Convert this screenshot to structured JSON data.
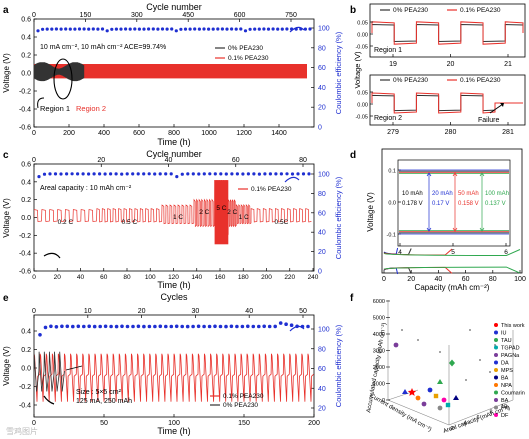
{
  "colors": {
    "red": "#e8312b",
    "black": "#333333",
    "blue": "#1f2fd1",
    "purple": "#7a3d9a",
    "green": "#2fa84f"
  },
  "panels": {
    "a": {
      "letter": "a",
      "top_label": "Cycle number",
      "top_ticks": [
        "0",
        "150",
        "300",
        "450",
        "600",
        "750"
      ],
      "xlabel": "Time (h)",
      "x_ticks": [
        "0",
        "200",
        "400",
        "600",
        "800",
        "1000",
        "1200",
        "1400"
      ],
      "ylabel": "Voltage (V)",
      "y_ticks": [
        "0.6",
        "0.4",
        "0.2",
        "0.0",
        "-0.2",
        "-0.4",
        "-0.6"
      ],
      "y2label": "Coulombic efficiency (%)",
      "y2_ticks": [
        "100",
        "80",
        "60",
        "40",
        "20",
        "0"
      ],
      "annotation_rate": "10 mA cm⁻², 10 mAh cm⁻²",
      "annotation_ace": "ACE=99.74%",
      "legend": [
        "0% PEA230",
        "0.1% PEA230"
      ],
      "region1": "Region 1",
      "region2": "Region 2"
    },
    "b": {
      "letter": "b",
      "legend": [
        "0% PEA230",
        "0.1% PEA230"
      ],
      "ylabel": "Voltage (V)",
      "top_ticks": [
        "19",
        "20",
        "21"
      ],
      "top_yticks": [
        "0.05",
        "0.00",
        "-0.05"
      ],
      "region1": "Region 1",
      "bottom_ticks": [
        "279",
        "280",
        "281"
      ],
      "bottom_yticks": [
        "0.05",
        "0.00",
        "-0.05"
      ],
      "region2": "Region 2",
      "failure": "Failure"
    },
    "c": {
      "letter": "c",
      "top_label": "Cycle number",
      "top_ticks": [
        "0",
        "20",
        "40",
        "60",
        "80"
      ],
      "xlabel": "Time (h)",
      "x_ticks": [
        "0",
        "20",
        "40",
        "60",
        "80",
        "100",
        "120",
        "140",
        "160",
        "180",
        "200",
        "220",
        "240"
      ],
      "ylabel": "Voltage (V)",
      "y_ticks": [
        "0.6",
        "0.4",
        "0.2",
        "0.0",
        "-0.2",
        "-0.4",
        "-0.6"
      ],
      "y2label": "Coulombic efficiency (%)",
      "y2_ticks": [
        "100",
        "80",
        "60",
        "40",
        "20",
        "0"
      ],
      "annotation": "Areal capacity : 10 mAh cm⁻²",
      "legend": "0.1% PEA230",
      "rates": [
        "0.2 C",
        "0.5 C",
        "1 C",
        "2 C",
        "5 C",
        "2 C",
        "1 C",
        "0.5C"
      ]
    },
    "d": {
      "letter": "d",
      "xlabel": "Capacity (mAh cm⁻²)",
      "x_ticks": [
        "0",
        "20",
        "40",
        "60",
        "80",
        "100"
      ],
      "ylabel": "Voltage (V)",
      "inset_ticks": [
        "4",
        "5",
        "6"
      ],
      "inset_yticks": [
        "0.1",
        "0.0",
        "-0.1"
      ],
      "inset_labels": [
        {
          "cap": "10 mAh",
          "v": "0.178 V"
        },
        {
          "cap": "20 mAh",
          "v": "0.17 V"
        },
        {
          "cap": "50 mAh",
          "v": "0.158 V"
        },
        {
          "cap": "100 mAh",
          "v": "0.137 V"
        }
      ]
    },
    "e": {
      "letter": "e",
      "top_label": "Cycles",
      "top_ticks": [
        "0",
        "10",
        "20",
        "30",
        "40",
        "50"
      ],
      "xlabel": "Time (h)",
      "x_ticks": [
        "0",
        "50",
        "100",
        "150",
        "200"
      ],
      "ylabel": "Voltage (V)",
      "y_ticks": [
        "0.4",
        "0.2",
        "0.0",
        "-0.2",
        "-0.4"
      ],
      "y2label": "Coulombic efficiency (%)",
      "y2_ticks": [
        "100",
        "80",
        "60",
        "40",
        "20"
      ],
      "size": "Size : 5×5 cm²",
      "current": "125 mA, 250 mAh",
      "legend": [
        "0.1% PEA230",
        "0% PEA230"
      ]
    },
    "f": {
      "letter": "f",
      "zlabel": "Accumulated capacity (mAh cm⁻²)",
      "z_ticks": [
        "0",
        "1000",
        "2000",
        "3000",
        "4000",
        "5000",
        "6000"
      ],
      "xlabel": "Areal capacity (mAh cm⁻²)",
      "ylabel": "Current density (mA cm⁻²)",
      "x_ticks": [
        "2",
        "4",
        "6",
        "8",
        "10"
      ],
      "legend": [
        "This work",
        "IU",
        "TAU",
        "TGPAD",
        "PAGNa",
        "DA",
        "MPS",
        "BA",
        "NPA",
        "Coumarin",
        "BA",
        "Pro",
        "DF"
      ]
    }
  },
  "watermark": "雪鸡图片",
  "chart_data": [
    {
      "type": "line",
      "panel": "a",
      "title": "",
      "xlabel": "Time (h)",
      "ylabel": "Voltage (V)",
      "xlim": [
        0,
        1600
      ],
      "ylim": [
        -0.6,
        0.6
      ],
      "series": [
        {
          "name": "0% PEA230",
          "color": "#333333",
          "x_range": [
            0,
            280
          ],
          "voltage_amplitude": 0.12
        },
        {
          "name": "0.1% PEA230",
          "color": "#e8312b",
          "x_range": [
            0,
            1560
          ],
          "voltage_amplitude": 0.1
        }
      ],
      "ce_series": {
        "axis": "right",
        "values_percent": [
          98,
          99.5,
          99.7,
          99.7,
          99.8,
          99.7,
          99.8,
          99.7,
          99.7,
          99.8,
          99.8,
          99.7,
          99.8,
          99.7,
          99.8
        ],
        "ylim": [
          0,
          110
        ]
      }
    },
    {
      "type": "line",
      "panel": "c",
      "xlabel": "Time (h)",
      "ylabel": "Voltage (V)",
      "xlim": [
        0,
        245
      ],
      "ylim": [
        -0.6,
        0.6
      ],
      "rate_segments": [
        {
          "label": "0.2 C",
          "x": [
            0,
            55
          ]
        },
        {
          "label": "0.5 C",
          "x": [
            55,
            112
          ]
        },
        {
          "label": "1 C",
          "x": [
            112,
            140
          ]
        },
        {
          "label": "2 C",
          "x": [
            140,
            158
          ]
        },
        {
          "label": "5 C",
          "x": [
            158,
            170
          ]
        },
        {
          "label": "2 C",
          "x": [
            170,
            177
          ]
        },
        {
          "label": "1 C",
          "x": [
            177,
            190
          ]
        },
        {
          "label": "0.5C",
          "x": [
            190,
            243
          ]
        }
      ],
      "ce_series": {
        "axis": "right",
        "values_percent": [
          97,
          99.5,
          99.8,
          99.8,
          99.7,
          99.8,
          99.9,
          99.8,
          99.8,
          99.7,
          99.8,
          99.8,
          99.7,
          99.8,
          99.8,
          99.6,
          99.8,
          99.8,
          99.8,
          99.8,
          99.9,
          99.7,
          99.8,
          99.8,
          99.8
        ]
      }
    },
    {
      "type": "line",
      "panel": "d",
      "xlabel": "Capacity (mAh cm⁻²)",
      "ylabel": "Voltage (V)",
      "xlim": [
        0,
        100
      ],
      "series": [
        {
          "name": "10 mAh",
          "color": "#1f2fd1",
          "capacity": 10,
          "overpotential_V": 0.178
        },
        {
          "name": "20 mAh",
          "color": "#333333",
          "capacity": 20,
          "overpotential_V": 0.17
        },
        {
          "name": "50 mAh",
          "color": "#e8312b",
          "capacity": 50,
          "overpotential_V": 0.158
        },
        {
          "name": "100 mAh",
          "color": "#2fa84f",
          "capacity": 100,
          "overpotential_V": 0.137
        }
      ]
    },
    {
      "type": "line",
      "panel": "e",
      "xlabel": "Time (h)",
      "ylabel": "Voltage (V)",
      "xlim": [
        0,
        200
      ],
      "ylim": [
        -0.5,
        0.5
      ],
      "series": [
        {
          "name": "0.1% PEA230",
          "color": "#e8312b",
          "x_range": [
            0,
            200
          ]
        },
        {
          "name": "0% PEA230",
          "color": "#333333",
          "x_range": [
            0,
            22
          ]
        }
      ],
      "ce_series": {
        "axis": "right",
        "values_percent": [
          92,
          99,
          100,
          99.5,
          100,
          100,
          99.7,
          100,
          99.8,
          100,
          99.7,
          99.8,
          100,
          99.8,
          99.7,
          100,
          99.8,
          99.8,
          100,
          99.7,
          99.8,
          99.8,
          100,
          99.8,
          99.8,
          100,
          99.8,
          99.7,
          99.8,
          100,
          99.8,
          99.8,
          100,
          99.8,
          99.7,
          100,
          99.8,
          99.8,
          100,
          99.8,
          99.8,
          100,
          99.8,
          99.9,
          103,
          102,
          101,
          100,
          99.8,
          99.8
        ]
      }
    },
    {
      "type": "scatter",
      "panel": "f",
      "title": "",
      "legend": [
        "This work",
        "IU",
        "TAU",
        "TGPAD",
        "PAGNa",
        "DA",
        "MPS",
        "BA",
        "NPA",
        "Coumarin",
        "BA",
        "Pro",
        "DF"
      ]
    }
  ]
}
